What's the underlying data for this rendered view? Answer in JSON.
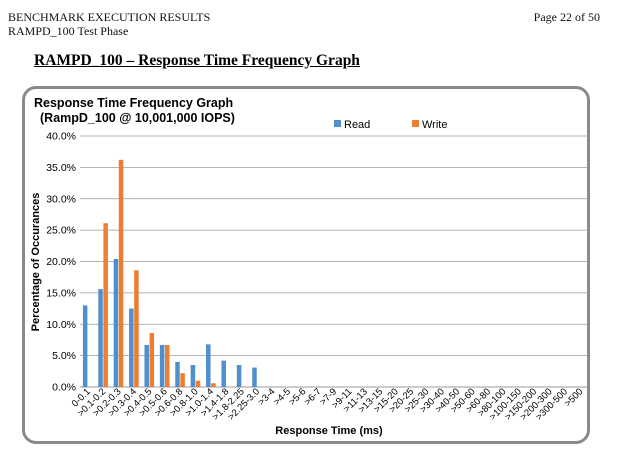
{
  "header": {
    "line1": "BENCHMARK EXECUTION RESULTS",
    "line2": "RAMPD_100 Test Phase",
    "page": "Page 22 of 50"
  },
  "section_title": "RAMPD_100 – Response Time Frequency Graph",
  "colors": {
    "read": "#4f8fcd",
    "write": "#ed7d31",
    "grid": "#9a9a9a",
    "frame": "#8a8a8a"
  },
  "chart_data": {
    "type": "bar",
    "title": [
      "Response  Time Frequency Graph",
      "(RampD_100  @ 10,001,000  IOPS)"
    ],
    "xlabel": "Response Time (ms)",
    "ylabel": "Percentage of Occurances",
    "ylim": [
      0,
      40
    ],
    "yticks": [
      "0.0%",
      "5.0%",
      "10.0%",
      "15.0%",
      "20.0%",
      "25.0%",
      "30.0%",
      "35.0%",
      "40.0%"
    ],
    "grid": true,
    "legend_position": "top-right",
    "categories": [
      "0-0.1",
      ">0.1-0.2",
      ">0.2-0.3",
      ">0.3-0.4",
      ">0.4-0.5",
      ">0.5-0.6",
      ">0.6-0.8",
      ">0.8-1.0",
      ">1.0-1.4",
      ">1.4-1.8",
      ">1.8-2.25",
      ">2.25-3.0",
      ">3-4",
      ">4-5",
      ">5-6",
      ">6-7",
      ">7-9",
      ">9-11",
      ">11-13",
      ">13-15",
      ">15-20",
      ">20-25",
      ">25-30",
      ">30-40",
      ">40-50",
      ">50-60",
      ">60-80",
      ">80-100",
      ">100-150",
      ">150-200",
      ">200-300",
      ">300-500",
      ">500"
    ],
    "series": [
      {
        "name": "Read",
        "values": [
          13.0,
          15.6,
          20.4,
          12.5,
          6.7,
          6.7,
          4.0,
          3.5,
          6.8,
          4.2,
          3.5,
          3.1,
          0,
          0,
          0,
          0,
          0,
          0,
          0,
          0,
          0,
          0,
          0,
          0,
          0,
          0,
          0,
          0,
          0,
          0,
          0,
          0,
          0
        ]
      },
      {
        "name": "Write",
        "values": [
          0,
          26.1,
          36.2,
          18.6,
          8.6,
          6.7,
          2.2,
          1.0,
          0.6,
          0,
          0,
          0,
          0,
          0,
          0,
          0,
          0,
          0,
          0,
          0,
          0,
          0,
          0,
          0,
          0,
          0,
          0,
          0,
          0,
          0,
          0,
          0,
          0
        ]
      }
    ]
  }
}
